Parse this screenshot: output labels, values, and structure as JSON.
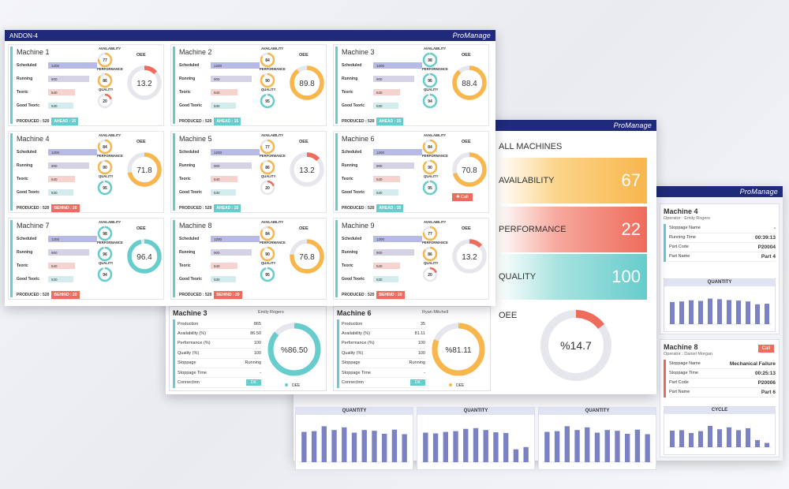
{
  "colors": {
    "navy": "#1f2a7a",
    "teal": "#6cc",
    "orange": "#f8b64c",
    "red": "#ef6b5b",
    "purple": "#7b82c4",
    "track": "#e6e7ec"
  },
  "brand": "ProManage",
  "front": {
    "title": "ANDON-4",
    "row_labels": [
      "Scheduled",
      "Running",
      "Teoric",
      "Good Teoric"
    ],
    "gauge_labels": [
      "AVAILABILITY",
      "PERFORMANCE",
      "QUALITY"
    ],
    "oee_label": "OEE",
    "produced": "PRODUCED : 520",
    "call_label": "Call",
    "machines": [
      {
        "name": "Machine 1",
        "vals": [
          "1200",
          "900",
          "540",
          "530"
        ],
        "avail": 77,
        "perf": 86,
        "qual": 20,
        "oee": "13.2",
        "oee_v": 13.2,
        "tag": "AHEAD : 15",
        "status": "ahead"
      },
      {
        "name": "Machine 2",
        "vals": [
          "1200",
          "900",
          "540",
          "530"
        ],
        "avail": 84,
        "perf": 90,
        "qual": 95,
        "oee": "89.8",
        "oee_v": 89.8,
        "tag": "AHEAD : 15",
        "status": "ahead"
      },
      {
        "name": "Machine 3",
        "vals": [
          "1200",
          "900",
          "540",
          "530"
        ],
        "avail": 98,
        "perf": 96,
        "qual": 94,
        "oee": "88.4",
        "oee_v": 88.4,
        "tag": "AHEAD : 15",
        "status": "ahead"
      },
      {
        "name": "Machine 4",
        "vals": [
          "1200",
          "900",
          "540",
          "530"
        ],
        "avail": 84,
        "perf": 90,
        "qual": 95,
        "oee": "71.8",
        "oee_v": 71.8,
        "tag": "BEHIND : 20",
        "status": "behind"
      },
      {
        "name": "Machine 5",
        "vals": [
          "1200",
          "900",
          "540",
          "530"
        ],
        "avail": 77,
        "perf": 86,
        "qual": 20,
        "oee": "13.2",
        "oee_v": 13.2,
        "tag": "AHEAD : 15",
        "status": "ahead"
      },
      {
        "name": "Machine 6",
        "vals": [
          "1200",
          "900",
          "540",
          "530"
        ],
        "avail": 84,
        "perf": 90,
        "qual": 95,
        "oee": "70.8",
        "oee_v": 70.8,
        "tag": "AHEAD : 15",
        "status": "ahead",
        "call": true
      },
      {
        "name": "Machine 7",
        "vals": [
          "1200",
          "900",
          "540",
          "530"
        ],
        "avail": 98,
        "perf": 96,
        "qual": 94,
        "oee": "96.4",
        "oee_v": 96.4,
        "tag": "BEHIND : 20",
        "status": "behind"
      },
      {
        "name": "Machine 8",
        "vals": [
          "1200",
          "900",
          "540",
          "530"
        ],
        "avail": 84,
        "perf": 90,
        "qual": 95,
        "oee": "76.8",
        "oee_v": 76.8,
        "tag": "BEHIND : 20",
        "status": "behind"
      },
      {
        "name": "Machine 9",
        "vals": [
          "1200",
          "900",
          "540",
          "530"
        ],
        "avail": 77,
        "perf": 86,
        "qual": 20,
        "oee": "13.2",
        "oee_v": 13.2,
        "tag": "BEHIND : 20",
        "status": "behind"
      }
    ]
  },
  "middle": {
    "all_title": "ALL MACHINES",
    "availability_label": "AVAILABILITY",
    "availability": "67",
    "performance_label": "PERFORMANCE",
    "performance": "22",
    "quality_label": "QUALITY",
    "quality": "100",
    "oee_label": "OEE",
    "oee": "%14.7",
    "oee_v": 14.7,
    "details": [
      {
        "name": "Machine 3",
        "operator": "Emily Rogers",
        "pct": "%86.50",
        "pct_v": 86.5,
        "color": "#6cc",
        "rows": [
          [
            "Production",
            "865"
          ],
          [
            "Availability (%)",
            "86.50"
          ],
          [
            "Performance (%)",
            "100"
          ],
          [
            "Quality (%)",
            "100"
          ],
          [
            "Stoppage",
            "Running"
          ],
          [
            "Stoppage Time",
            "-"
          ],
          [
            "Connection",
            "OK"
          ]
        ]
      },
      {
        "name": "Machine 6",
        "operator": "Ryan Mitchell",
        "pct": "%81.11",
        "pct_v": 81.11,
        "color": "#f8b64c",
        "rows": [
          [
            "Production",
            "35"
          ],
          [
            "Availability (%)",
            "81.11"
          ],
          [
            "Performance (%)",
            "100"
          ],
          [
            "Quality (%)",
            "100"
          ],
          [
            "Stoppage",
            "Running"
          ],
          [
            "Stoppage Time",
            "-"
          ],
          [
            "Connection",
            "OK"
          ]
        ]
      }
    ],
    "legend_oee": "OEE"
  },
  "back": {
    "quantity_label": "QUANTITY",
    "cycle_label": "CYCLE",
    "m4": {
      "name": "Machine 4",
      "operator": "Operator : Emily Rogers",
      "rows": [
        [
          "Stoppage Name",
          "-"
        ],
        [
          "Running Time",
          "00:39:13"
        ],
        [
          "Part Code",
          "P20004"
        ],
        [
          "Part Name",
          "Part 4"
        ]
      ]
    },
    "m8": {
      "name": "Machine 8",
      "operator": "Operator : Daniel Morgan",
      "call": "Call",
      "rows": [
        [
          "Stoppage Name",
          "Mechanical Failure"
        ],
        [
          "Stoppage Time",
          "00:25:13"
        ],
        [
          "Part Code",
          "P20006"
        ],
        [
          "Part Name",
          "Part 6"
        ]
      ]
    }
  },
  "chart_data": [
    {
      "type": "bar",
      "title": "QUANTITY",
      "values": [
        80,
        82,
        95,
        85,
        92,
        78,
        85,
        83,
        75,
        86,
        74
      ]
    },
    {
      "type": "bar",
      "title": "QUANTITY",
      "values": [
        78,
        76,
        80,
        82,
        88,
        90,
        85,
        79,
        77,
        34,
        40
      ]
    },
    {
      "type": "bar",
      "title": "QUANTITY",
      "values": [
        80,
        82,
        95,
        85,
        92,
        78,
        85,
        83,
        75,
        86,
        74
      ]
    },
    {
      "type": "bar",
      "title": "QUANTITY",
      "values": [
        78,
        80,
        84,
        82,
        90,
        88,
        85,
        83,
        80,
        70,
        72
      ]
    },
    {
      "type": "bar",
      "title": "CYCLE",
      "values": [
        70,
        72,
        60,
        68,
        90,
        76,
        84,
        72,
        80,
        30,
        18
      ]
    }
  ]
}
